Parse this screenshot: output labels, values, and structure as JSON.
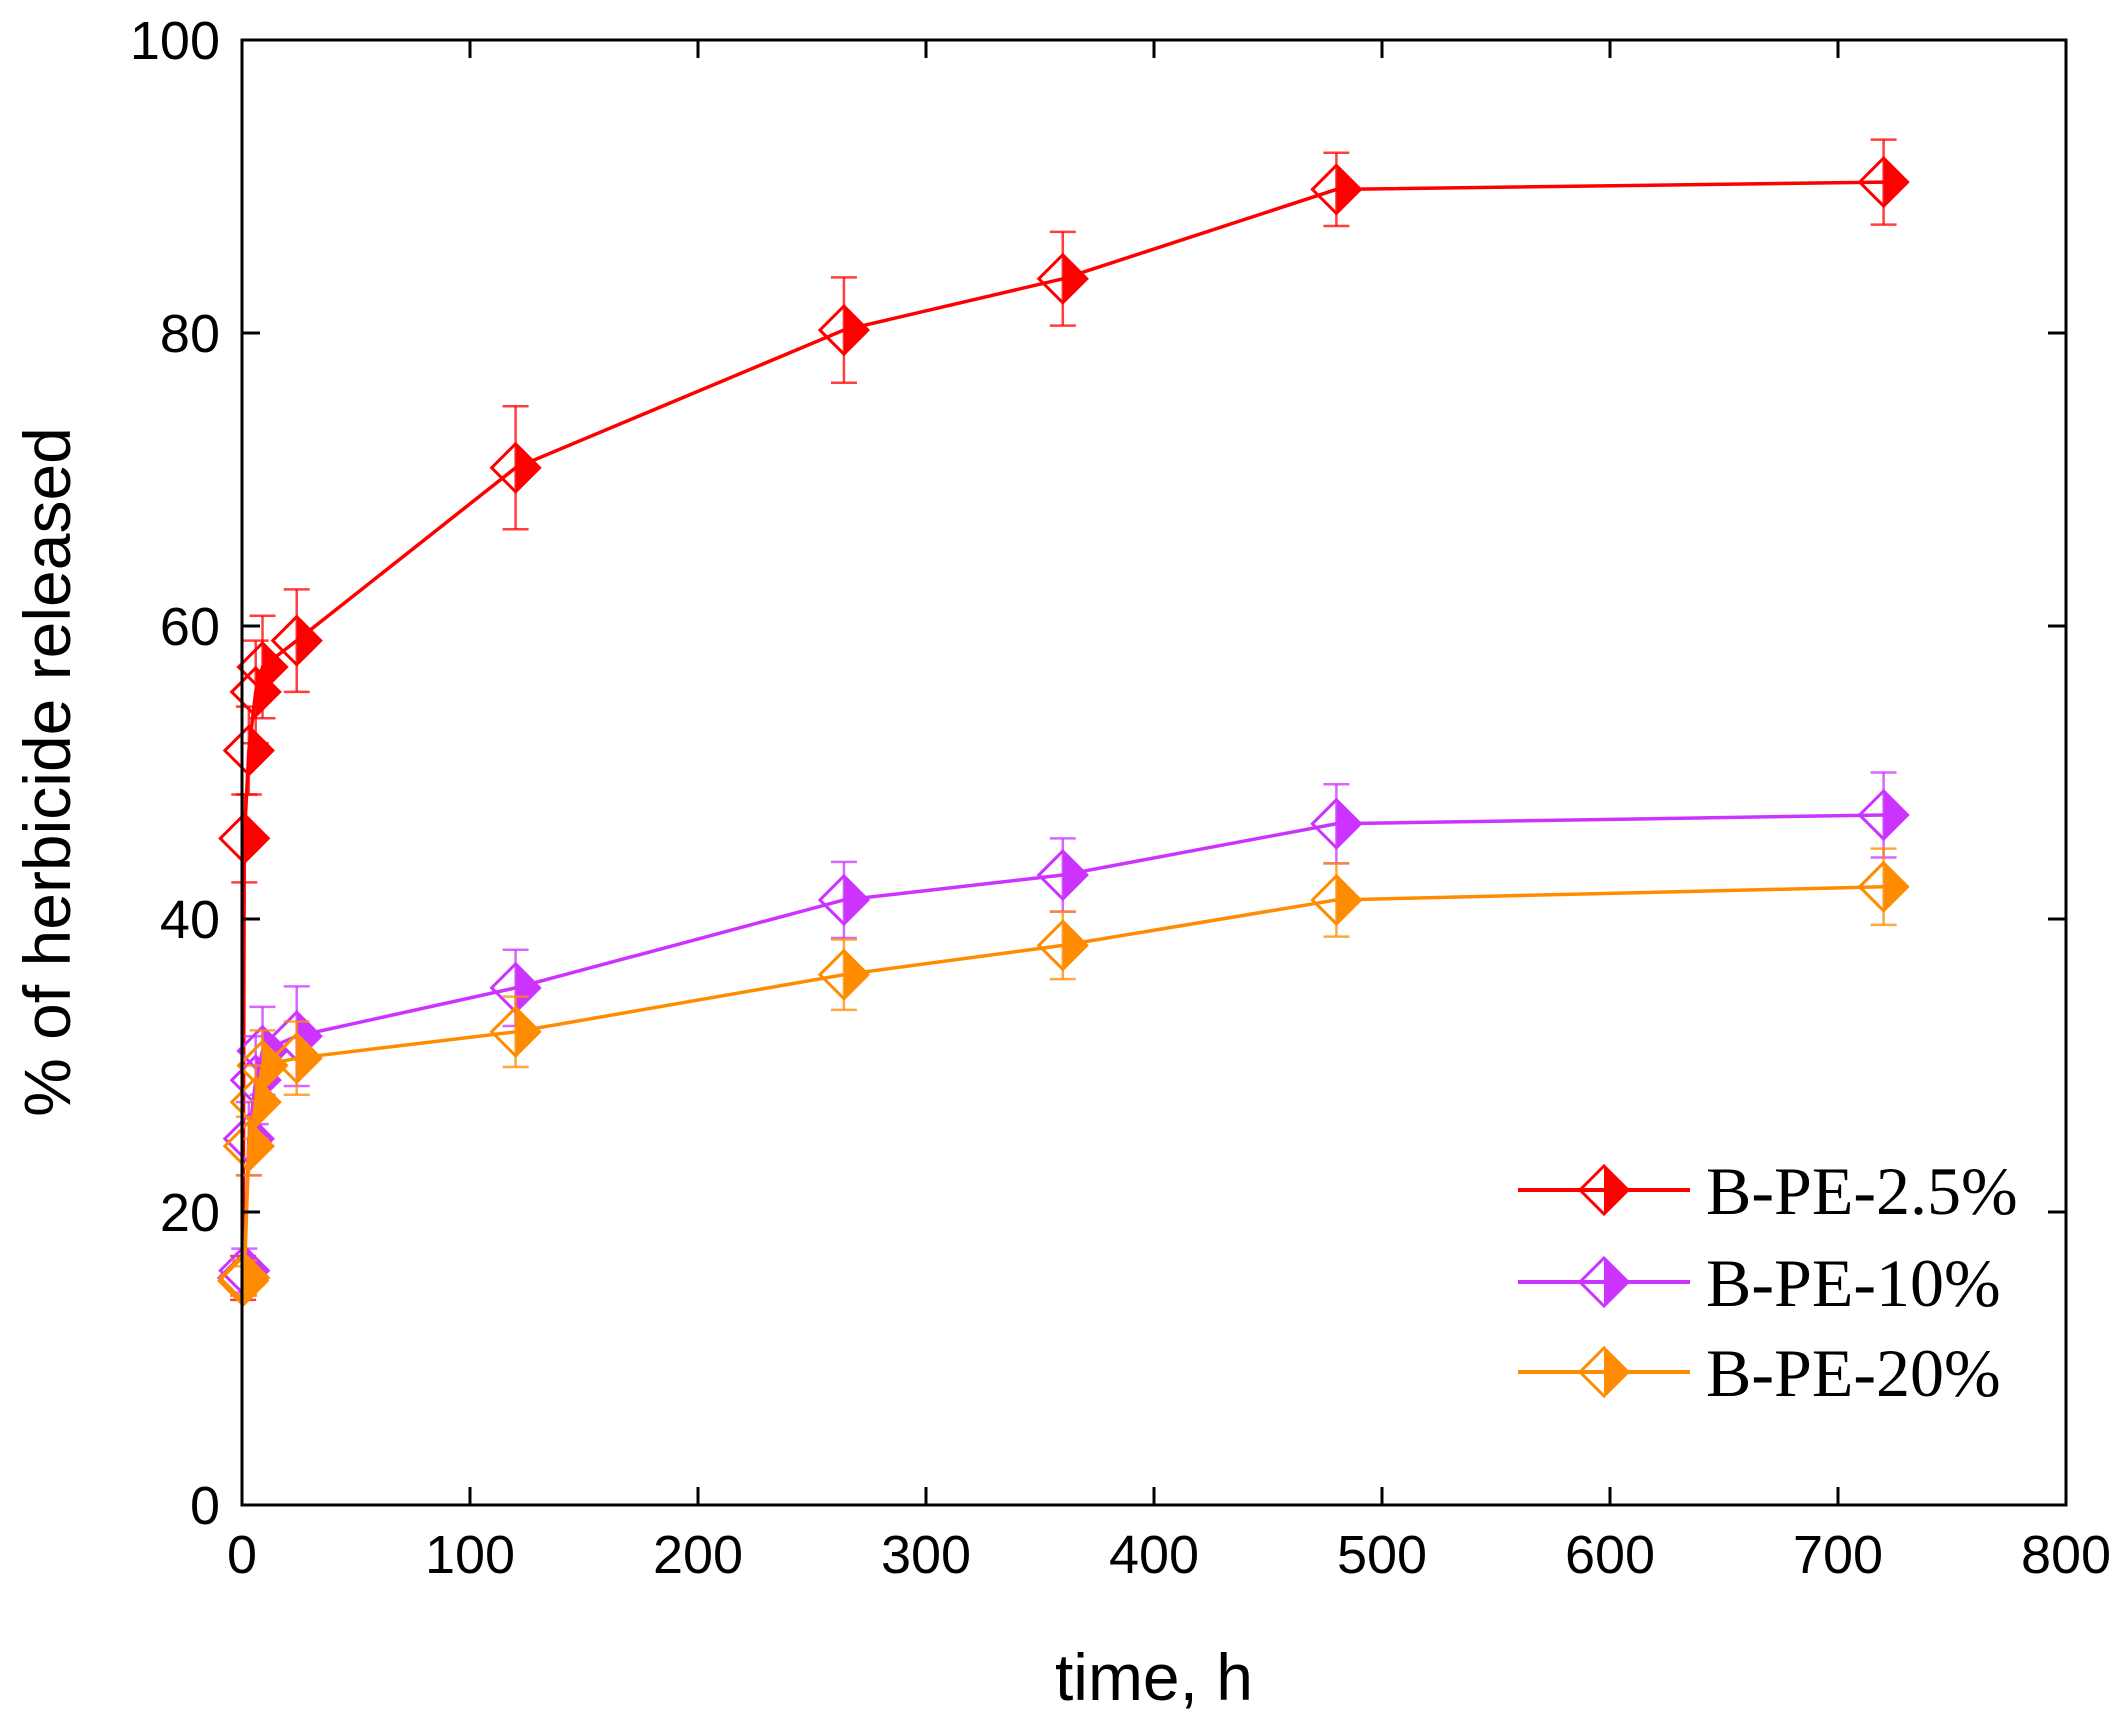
{
  "chart_data": {
    "type": "line",
    "xlabel": "time, h",
    "ylabel": "% of herbicide released",
    "xlim": [
      0,
      800
    ],
    "ylim": [
      0,
      100
    ],
    "xticks": [
      0,
      100,
      200,
      300,
      400,
      500,
      600,
      700,
      800
    ],
    "yticks": [
      0,
      20,
      40,
      60,
      80,
      100
    ],
    "grid": false,
    "legend_position": "lower-right",
    "series": [
      {
        "name": "B-PE-2.5%",
        "color": "#ff0000",
        "x": [
          0.5,
          1,
          3,
          6,
          9,
          24,
          120,
          264,
          360,
          480,
          720
        ],
        "y": [
          15.5,
          45.5,
          51.5,
          55.5,
          57.2,
          59,
          70.8,
          80.2,
          83.7,
          89.8,
          90.3
        ],
        "err": [
          1.5,
          3,
          3,
          3.5,
          3.5,
          3.5,
          4.2,
          3.6,
          3.2,
          2.5,
          2.9
        ]
      },
      {
        "name": "B-PE-10%",
        "color": "#cc33ff",
        "x": [
          0.5,
          1,
          3,
          6,
          9,
          24,
          120,
          264,
          360,
          480,
          720
        ],
        "y": [
          15.5,
          16,
          25,
          29,
          31,
          32,
          35.3,
          41.3,
          43,
          46.5,
          47.1
        ],
        "err": [
          1.2,
          1.5,
          2.5,
          3,
          3,
          3.4,
          2.6,
          2.6,
          2.5,
          2.7,
          2.9
        ]
      },
      {
        "name": "B-PE-20%",
        "color": "#ff8c00",
        "x": [
          0.5,
          1,
          3,
          6,
          9,
          24,
          120,
          264,
          360,
          480,
          720
        ],
        "y": [
          15.3,
          15.5,
          24.5,
          27.5,
          30,
          30.5,
          32.3,
          36.2,
          38.2,
          41.3,
          42.2
        ],
        "err": [
          1.0,
          1.2,
          2.0,
          2.5,
          2.4,
          2.5,
          2.4,
          2.4,
          2.3,
          2.5,
          2.6
        ]
      }
    ]
  }
}
